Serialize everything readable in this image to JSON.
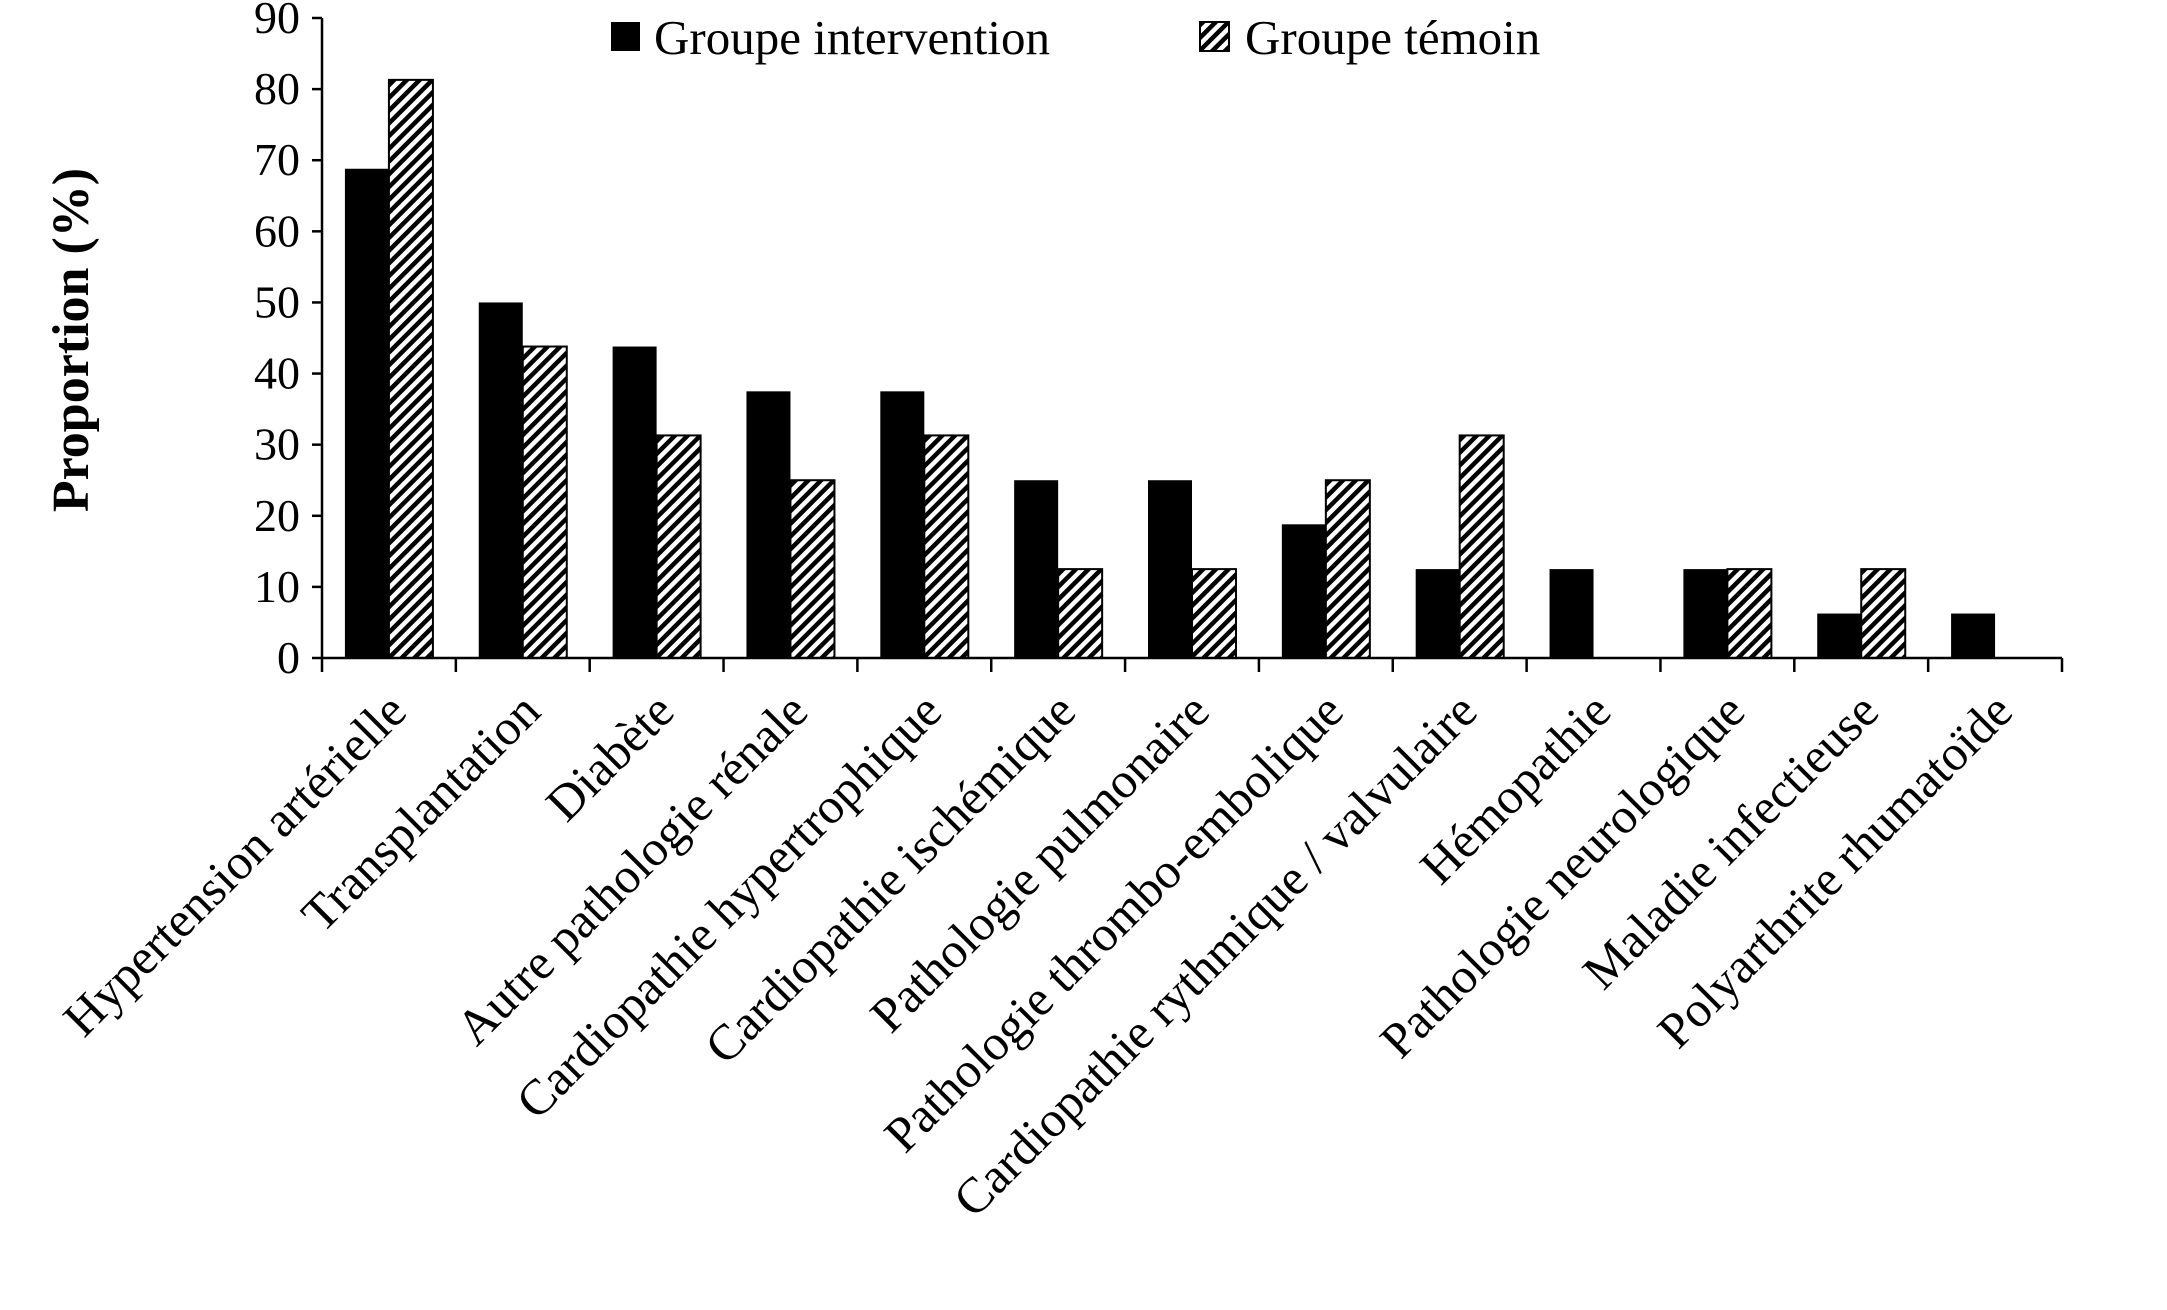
{
  "chart_data": {
    "type": "bar",
    "ylabel": "Proportion (%)",
    "xlabel": "",
    "ylim": [
      0,
      90
    ],
    "yticks": [
      0,
      10,
      20,
      30,
      40,
      50,
      60,
      70,
      80,
      90
    ],
    "grid": false,
    "legend_position": "top-center",
    "categories": [
      "Hypertension artérielle",
      "Transplantation",
      "Diabète",
      "Autre pathologie rénale",
      "Cardiopathie hypertrophique",
      "Cardiopathie ischémique",
      "Pathologie pulmonaire",
      "Pathologie thrombo-embolique",
      "Cardiopathie rythmique / valvulaire",
      "Hémopathie",
      "Pathologie neurologique",
      "Maladie infectieuse",
      "Polyarthrite rhumatoïde"
    ],
    "series": [
      {
        "name": "Groupe intervention",
        "fill": "solid",
        "color": "#000000",
        "values": [
          68.8,
          50,
          43.8,
          37.5,
          37.5,
          25,
          25,
          18.8,
          12.5,
          12.5,
          12.5,
          6.25,
          6.25
        ]
      },
      {
        "name": "Groupe témoin",
        "fill": "diagonal-hatch",
        "color": "#000000",
        "values": [
          81.3,
          43.8,
          31.3,
          25,
          31.3,
          12.5,
          12.5,
          25,
          31.3,
          0,
          12.5,
          12.5,
          0
        ]
      }
    ]
  }
}
